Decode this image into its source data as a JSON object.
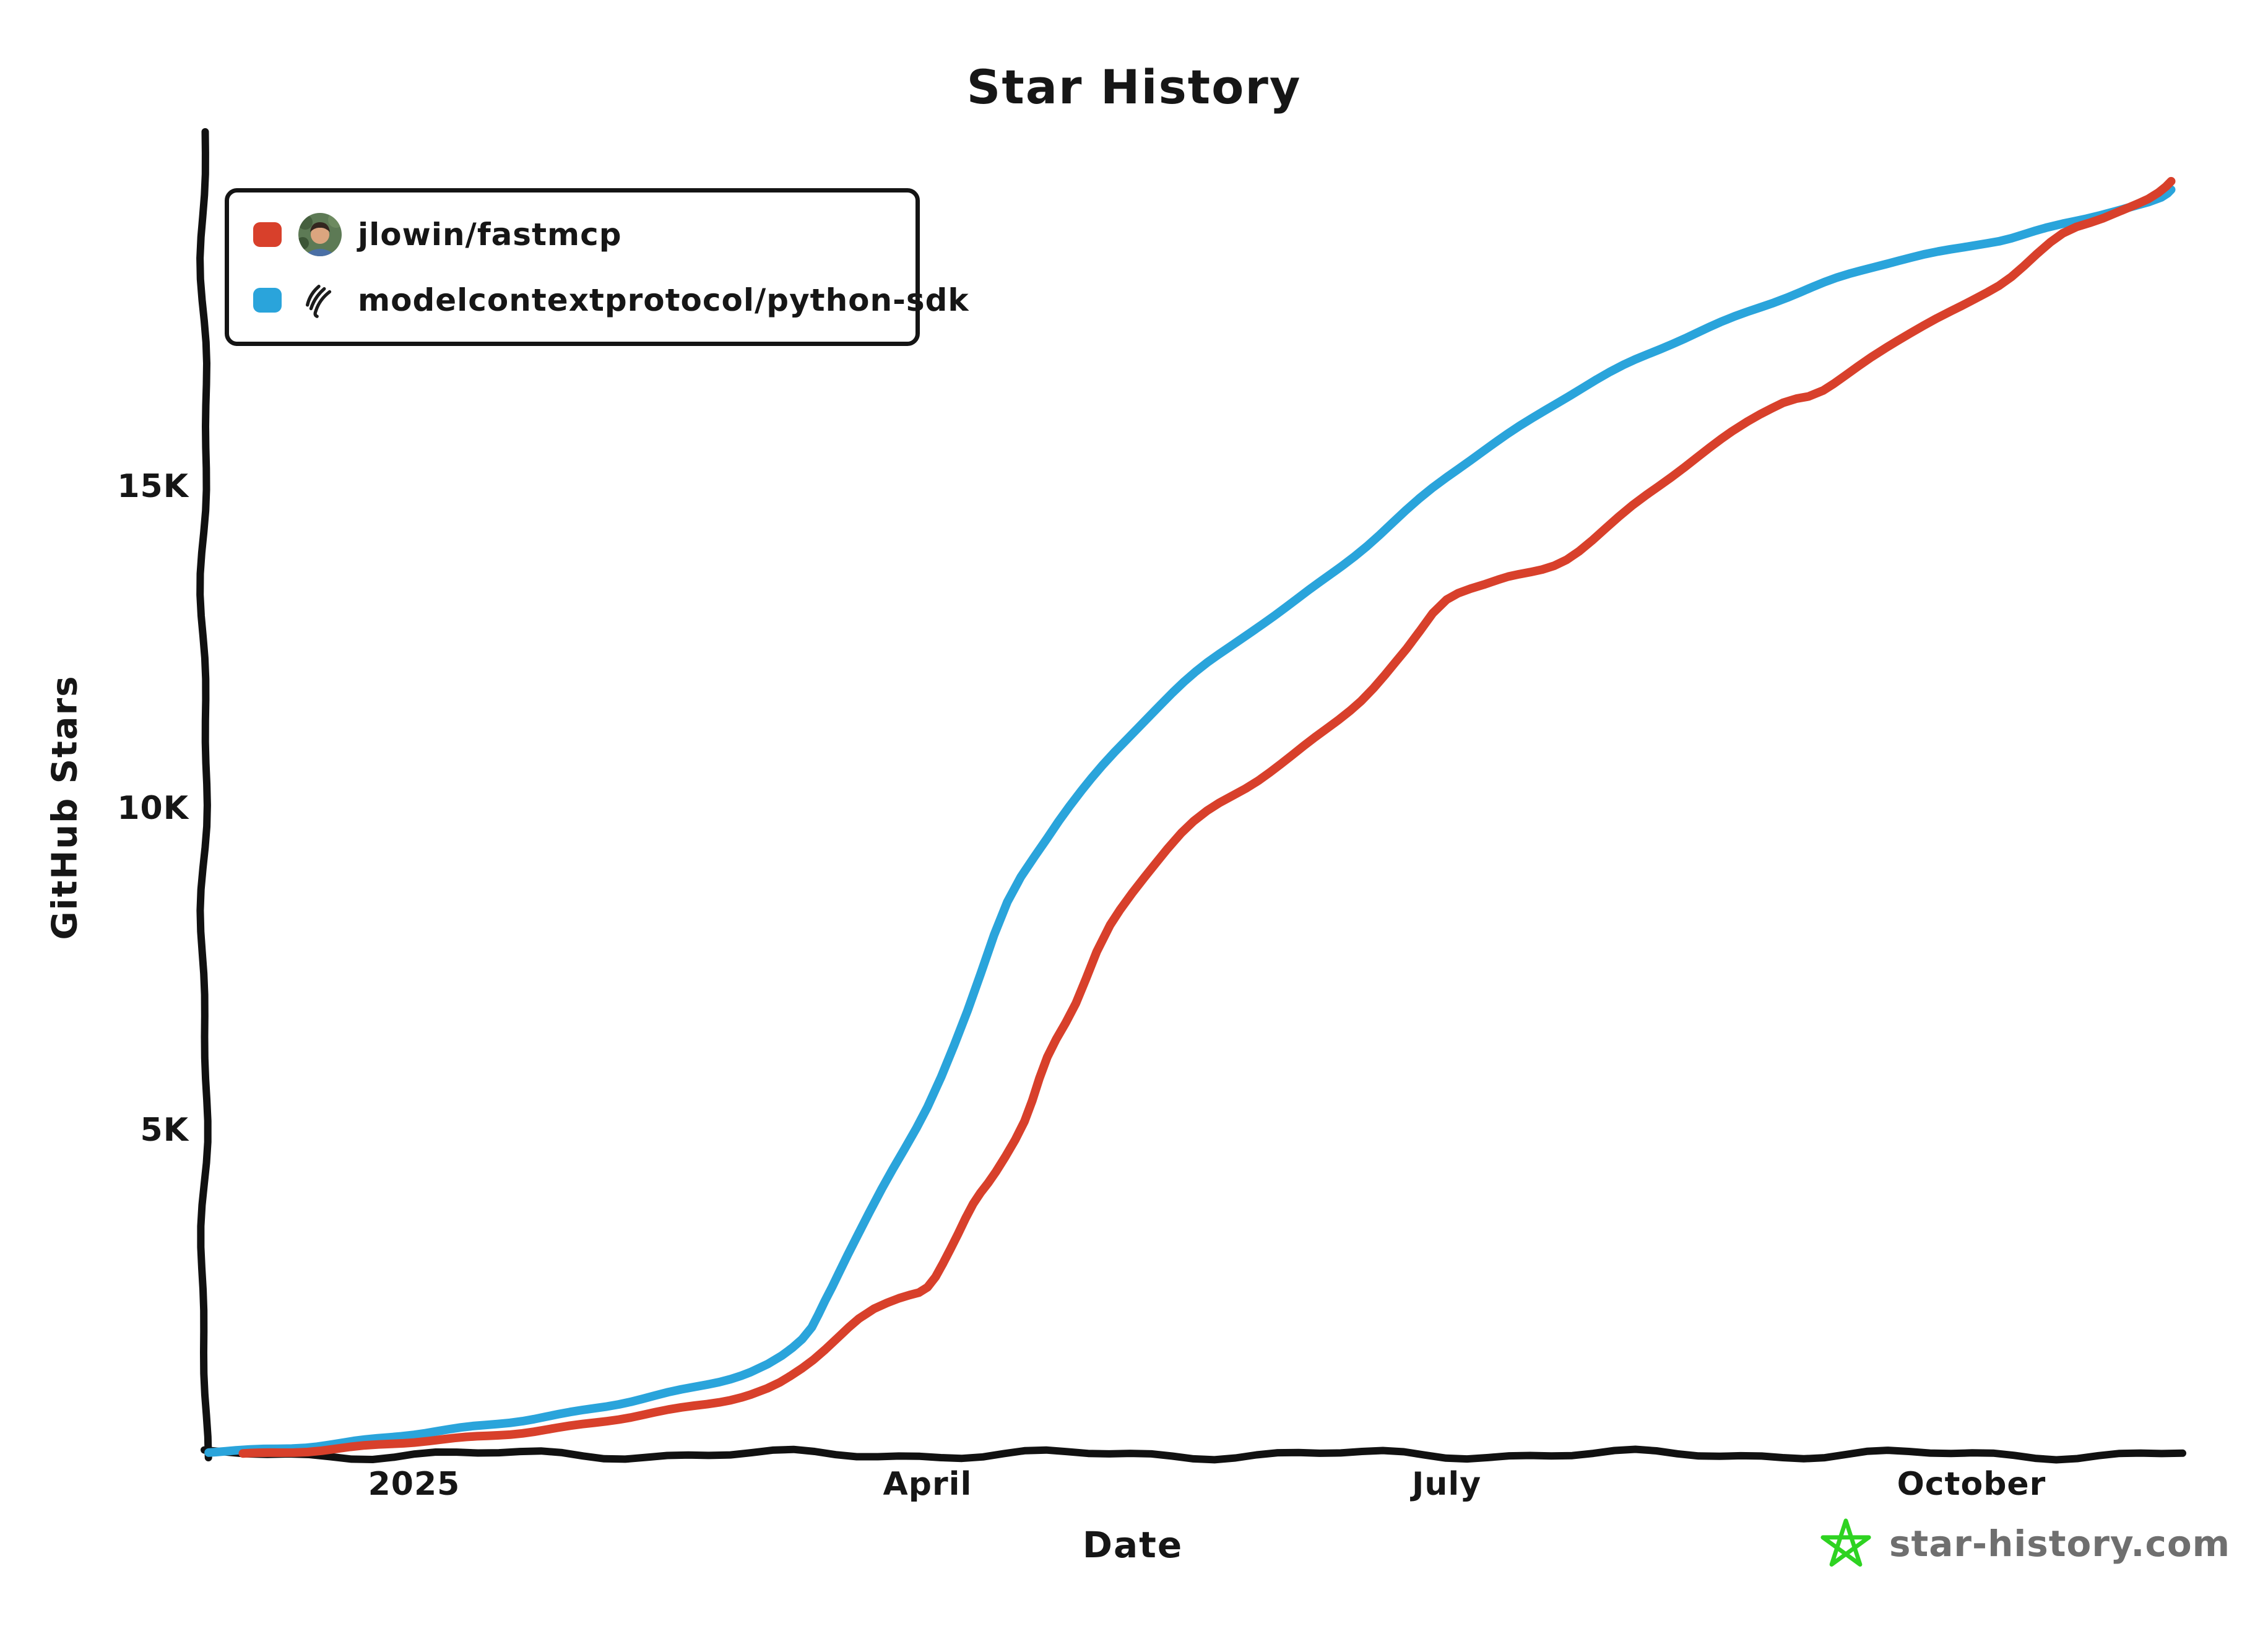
{
  "title": "Star History",
  "legend": {
    "items": [
      {
        "label": "jlowin/fastmcp",
        "color": "#D8402B",
        "icon": "jlowin-avatar"
      },
      {
        "label": "modelcontextprotocol/python-sdk",
        "color": "#2AA4DB",
        "icon": "mcp-logo"
      }
    ]
  },
  "axes": {
    "x": {
      "label": "Date",
      "tick_labels": [
        "2025",
        "April",
        "July",
        "October"
      ]
    },
    "y": {
      "label": "GitHub Stars",
      "tick_labels": [
        "5K",
        "10K",
        "15K"
      ]
    }
  },
  "footer": {
    "brand": "star-history.com",
    "star_color": "#2ED321",
    "text_color": "#6f6f6f"
  },
  "chart_data": {
    "type": "line",
    "title": "Star History",
    "xlabel": "Date",
    "ylabel": "GitHub Stars",
    "grid": false,
    "legend_position": "top-left",
    "ylim": [
      0,
      20500
    ],
    "x_range_dates": [
      "2024-11-25",
      "2025-11-08"
    ],
    "x_ticks": [
      {
        "label": "2025",
        "date": "2025-01-01"
      },
      {
        "label": "April",
        "date": "2025-04-01"
      },
      {
        "label": "July",
        "date": "2025-07-01"
      },
      {
        "label": "October",
        "date": "2025-10-01"
      }
    ],
    "y_ticks": [
      {
        "label": "5K",
        "value": 5000
      },
      {
        "label": "10K",
        "value": 10000
      },
      {
        "label": "15K",
        "value": 15000
      }
    ],
    "series": [
      {
        "name": "modelcontextprotocol/python-sdk",
        "color": "#2AA4DB",
        "points": [
          [
            "2024-11-26",
            30
          ],
          [
            "2024-12-15",
            150
          ],
          [
            "2025-01-01",
            300
          ],
          [
            "2025-01-20",
            550
          ],
          [
            "2025-02-10",
            850
          ],
          [
            "2025-03-01",
            1300
          ],
          [
            "2025-03-10",
            1800
          ],
          [
            "2025-03-14",
            2400
          ],
          [
            "2025-03-18",
            3100
          ],
          [
            "2025-03-24",
            4100
          ],
          [
            "2025-04-01",
            5400
          ],
          [
            "2025-04-08",
            6900
          ],
          [
            "2025-04-15",
            8600
          ],
          [
            "2025-04-22",
            9600
          ],
          [
            "2025-04-28",
            10300
          ],
          [
            "2025-05-06",
            11100
          ],
          [
            "2025-05-16",
            12000
          ],
          [
            "2025-05-26",
            12700
          ],
          [
            "2025-06-05",
            13300
          ],
          [
            "2025-06-17",
            14100
          ],
          [
            "2025-07-01",
            15200
          ],
          [
            "2025-07-16",
            16100
          ],
          [
            "2025-08-01",
            16900
          ],
          [
            "2025-08-18",
            17600
          ],
          [
            "2025-09-01",
            18050
          ],
          [
            "2025-09-16",
            18500
          ],
          [
            "2025-10-01",
            18800
          ],
          [
            "2025-10-08",
            18900
          ],
          [
            "2025-10-17",
            19100
          ],
          [
            "2025-11-01",
            19450
          ],
          [
            "2025-11-05",
            19650
          ]
        ]
      },
      {
        "name": "jlowin/fastmcp",
        "color": "#D8402B",
        "points": [
          [
            "2024-12-02",
            10
          ],
          [
            "2025-01-01",
            180
          ],
          [
            "2025-01-20",
            360
          ],
          [
            "2025-02-10",
            600
          ],
          [
            "2025-03-01",
            950
          ],
          [
            "2025-03-10",
            1350
          ],
          [
            "2025-03-20",
            2100
          ],
          [
            "2025-03-27",
            2400
          ],
          [
            "2025-04-01",
            2600
          ],
          [
            "2025-04-05",
            3200
          ],
          [
            "2025-04-09",
            3900
          ],
          [
            "2025-04-13",
            4400
          ],
          [
            "2025-04-18",
            5200
          ],
          [
            "2025-04-22",
            6200
          ],
          [
            "2025-04-27",
            7000
          ],
          [
            "2025-05-03",
            8200
          ],
          [
            "2025-05-13",
            9400
          ],
          [
            "2025-05-20",
            10000
          ],
          [
            "2025-05-29",
            10500
          ],
          [
            "2025-06-06",
            11000
          ],
          [
            "2025-06-16",
            11700
          ],
          [
            "2025-06-24",
            12500
          ],
          [
            "2025-07-01",
            13300
          ],
          [
            "2025-07-10",
            13600
          ],
          [
            "2025-07-22",
            13900
          ],
          [
            "2025-08-05",
            14900
          ],
          [
            "2025-08-20",
            15900
          ],
          [
            "2025-08-29",
            16350
          ],
          [
            "2025-09-05",
            16500
          ],
          [
            "2025-09-16",
            17200
          ],
          [
            "2025-10-01",
            17950
          ],
          [
            "2025-10-08",
            18300
          ],
          [
            "2025-10-17",
            18950
          ],
          [
            "2025-10-24",
            19200
          ],
          [
            "2025-11-01",
            19500
          ],
          [
            "2025-11-05",
            19780
          ]
        ]
      }
    ]
  }
}
